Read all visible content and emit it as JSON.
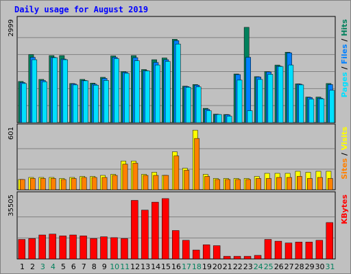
{
  "page": {
    "title": "Daily usage for August 2019"
  },
  "chart_data": [
    {
      "type": "bar",
      "title": "Daily usage for August 2019",
      "categories": [
        "1",
        "2",
        "3",
        "4",
        "5",
        "6",
        "7",
        "8",
        "9",
        "10",
        "11",
        "12",
        "13",
        "14",
        "15",
        "16",
        "17",
        "18",
        "19",
        "20",
        "21",
        "22",
        "23",
        "24",
        "25",
        "26",
        "27",
        "28",
        "29",
        "30",
        "31"
      ],
      "weekend_days": [
        "3",
        "4",
        "10",
        "11",
        "17",
        "18",
        "24",
        "25",
        "31"
      ],
      "y_max_label": "2999",
      "ylim": [
        0,
        2999
      ],
      "ylabel_parts": [
        "Pages",
        "Files",
        "Hits"
      ],
      "series": [
        {
          "name": "Hits",
          "color": "#00805c",
          "values": [
            1210,
            2000,
            1270,
            1970,
            1970,
            1150,
            1270,
            1160,
            1330,
            1960,
            1500,
            1970,
            1560,
            1850,
            1900,
            2450,
            1070,
            1120,
            420,
            250,
            240,
            1430,
            2800,
            1350,
            1500,
            1690,
            2070,
            1140,
            750,
            750,
            1150
          ]
        },
        {
          "name": "Files",
          "color": "#0080ff",
          "values": [
            1180,
            1920,
            1240,
            1920,
            1870,
            1140,
            1240,
            1130,
            1300,
            1920,
            1480,
            1910,
            1530,
            1770,
            1850,
            2410,
            1060,
            1100,
            390,
            240,
            230,
            1410,
            1920,
            1340,
            1490,
            1660,
            2050,
            1130,
            740,
            720,
            1120
          ]
        },
        {
          "name": "Pages",
          "color": "#00e0ff",
          "values": [
            1150,
            1850,
            1200,
            1910,
            1850,
            1110,
            1230,
            1100,
            1240,
            1880,
            1450,
            1820,
            1520,
            1690,
            1800,
            2310,
            1040,
            1050,
            350,
            240,
            190,
            1250,
            350,
            1270,
            1420,
            1650,
            1690,
            1110,
            690,
            700,
            950
          ]
        }
      ]
    },
    {
      "type": "bar",
      "categories": [
        "1",
        "2",
        "3",
        "4",
        "5",
        "6",
        "7",
        "8",
        "9",
        "10",
        "11",
        "12",
        "13",
        "14",
        "15",
        "16",
        "17",
        "18",
        "19",
        "20",
        "21",
        "22",
        "23",
        "24",
        "25",
        "26",
        "27",
        "28",
        "29",
        "30",
        "31"
      ],
      "y_max_label": "601",
      "ylim": [
        0,
        601
      ],
      "ylabel_parts": [
        "Sites",
        "Visits"
      ],
      "series": [
        {
          "name": "Visits",
          "color": "#ffff00",
          "values": [
            100,
            120,
            120,
            120,
            110,
            120,
            130,
            130,
            140,
            150,
            280,
            280,
            150,
            170,
            140,
            370,
            210,
            580,
            150,
            110,
            110,
            110,
            110,
            130,
            160,
            160,
            160,
            180,
            170,
            180,
            180
          ]
        },
        {
          "name": "Sites",
          "color": "#ff8000",
          "values": [
            100,
            110,
            110,
            110,
            100,
            110,
            120,
            120,
            120,
            140,
            250,
            260,
            140,
            140,
            140,
            330,
            190,
            500,
            130,
            100,
            100,
            100,
            100,
            110,
            110,
            120,
            120,
            130,
            110,
            120,
            110
          ]
        }
      ]
    },
    {
      "type": "bar",
      "categories": [
        "1",
        "2",
        "3",
        "4",
        "5",
        "6",
        "7",
        "8",
        "9",
        "10",
        "11",
        "12",
        "13",
        "14",
        "15",
        "16",
        "17",
        "18",
        "19",
        "20",
        "21",
        "22",
        "23",
        "24",
        "25",
        "26",
        "27",
        "28",
        "29",
        "30",
        "31"
      ],
      "y_max_label": "35505",
      "ylim": [
        0,
        35505
      ],
      "ylabel_parts": [
        "KBytes"
      ],
      "series": [
        {
          "name": "KBytes",
          "color": "#ff0000",
          "values": [
            11000,
            11500,
            13500,
            14000,
            13000,
            13500,
            13000,
            11500,
            12500,
            12000,
            11500,
            33000,
            27500,
            32000,
            34000,
            16000,
            10500,
            5000,
            8000,
            7500,
            1500,
            1500,
            1500,
            2000,
            11000,
            10000,
            9000,
            9500,
            9500,
            10500,
            20500
          ]
        }
      ]
    }
  ]
}
